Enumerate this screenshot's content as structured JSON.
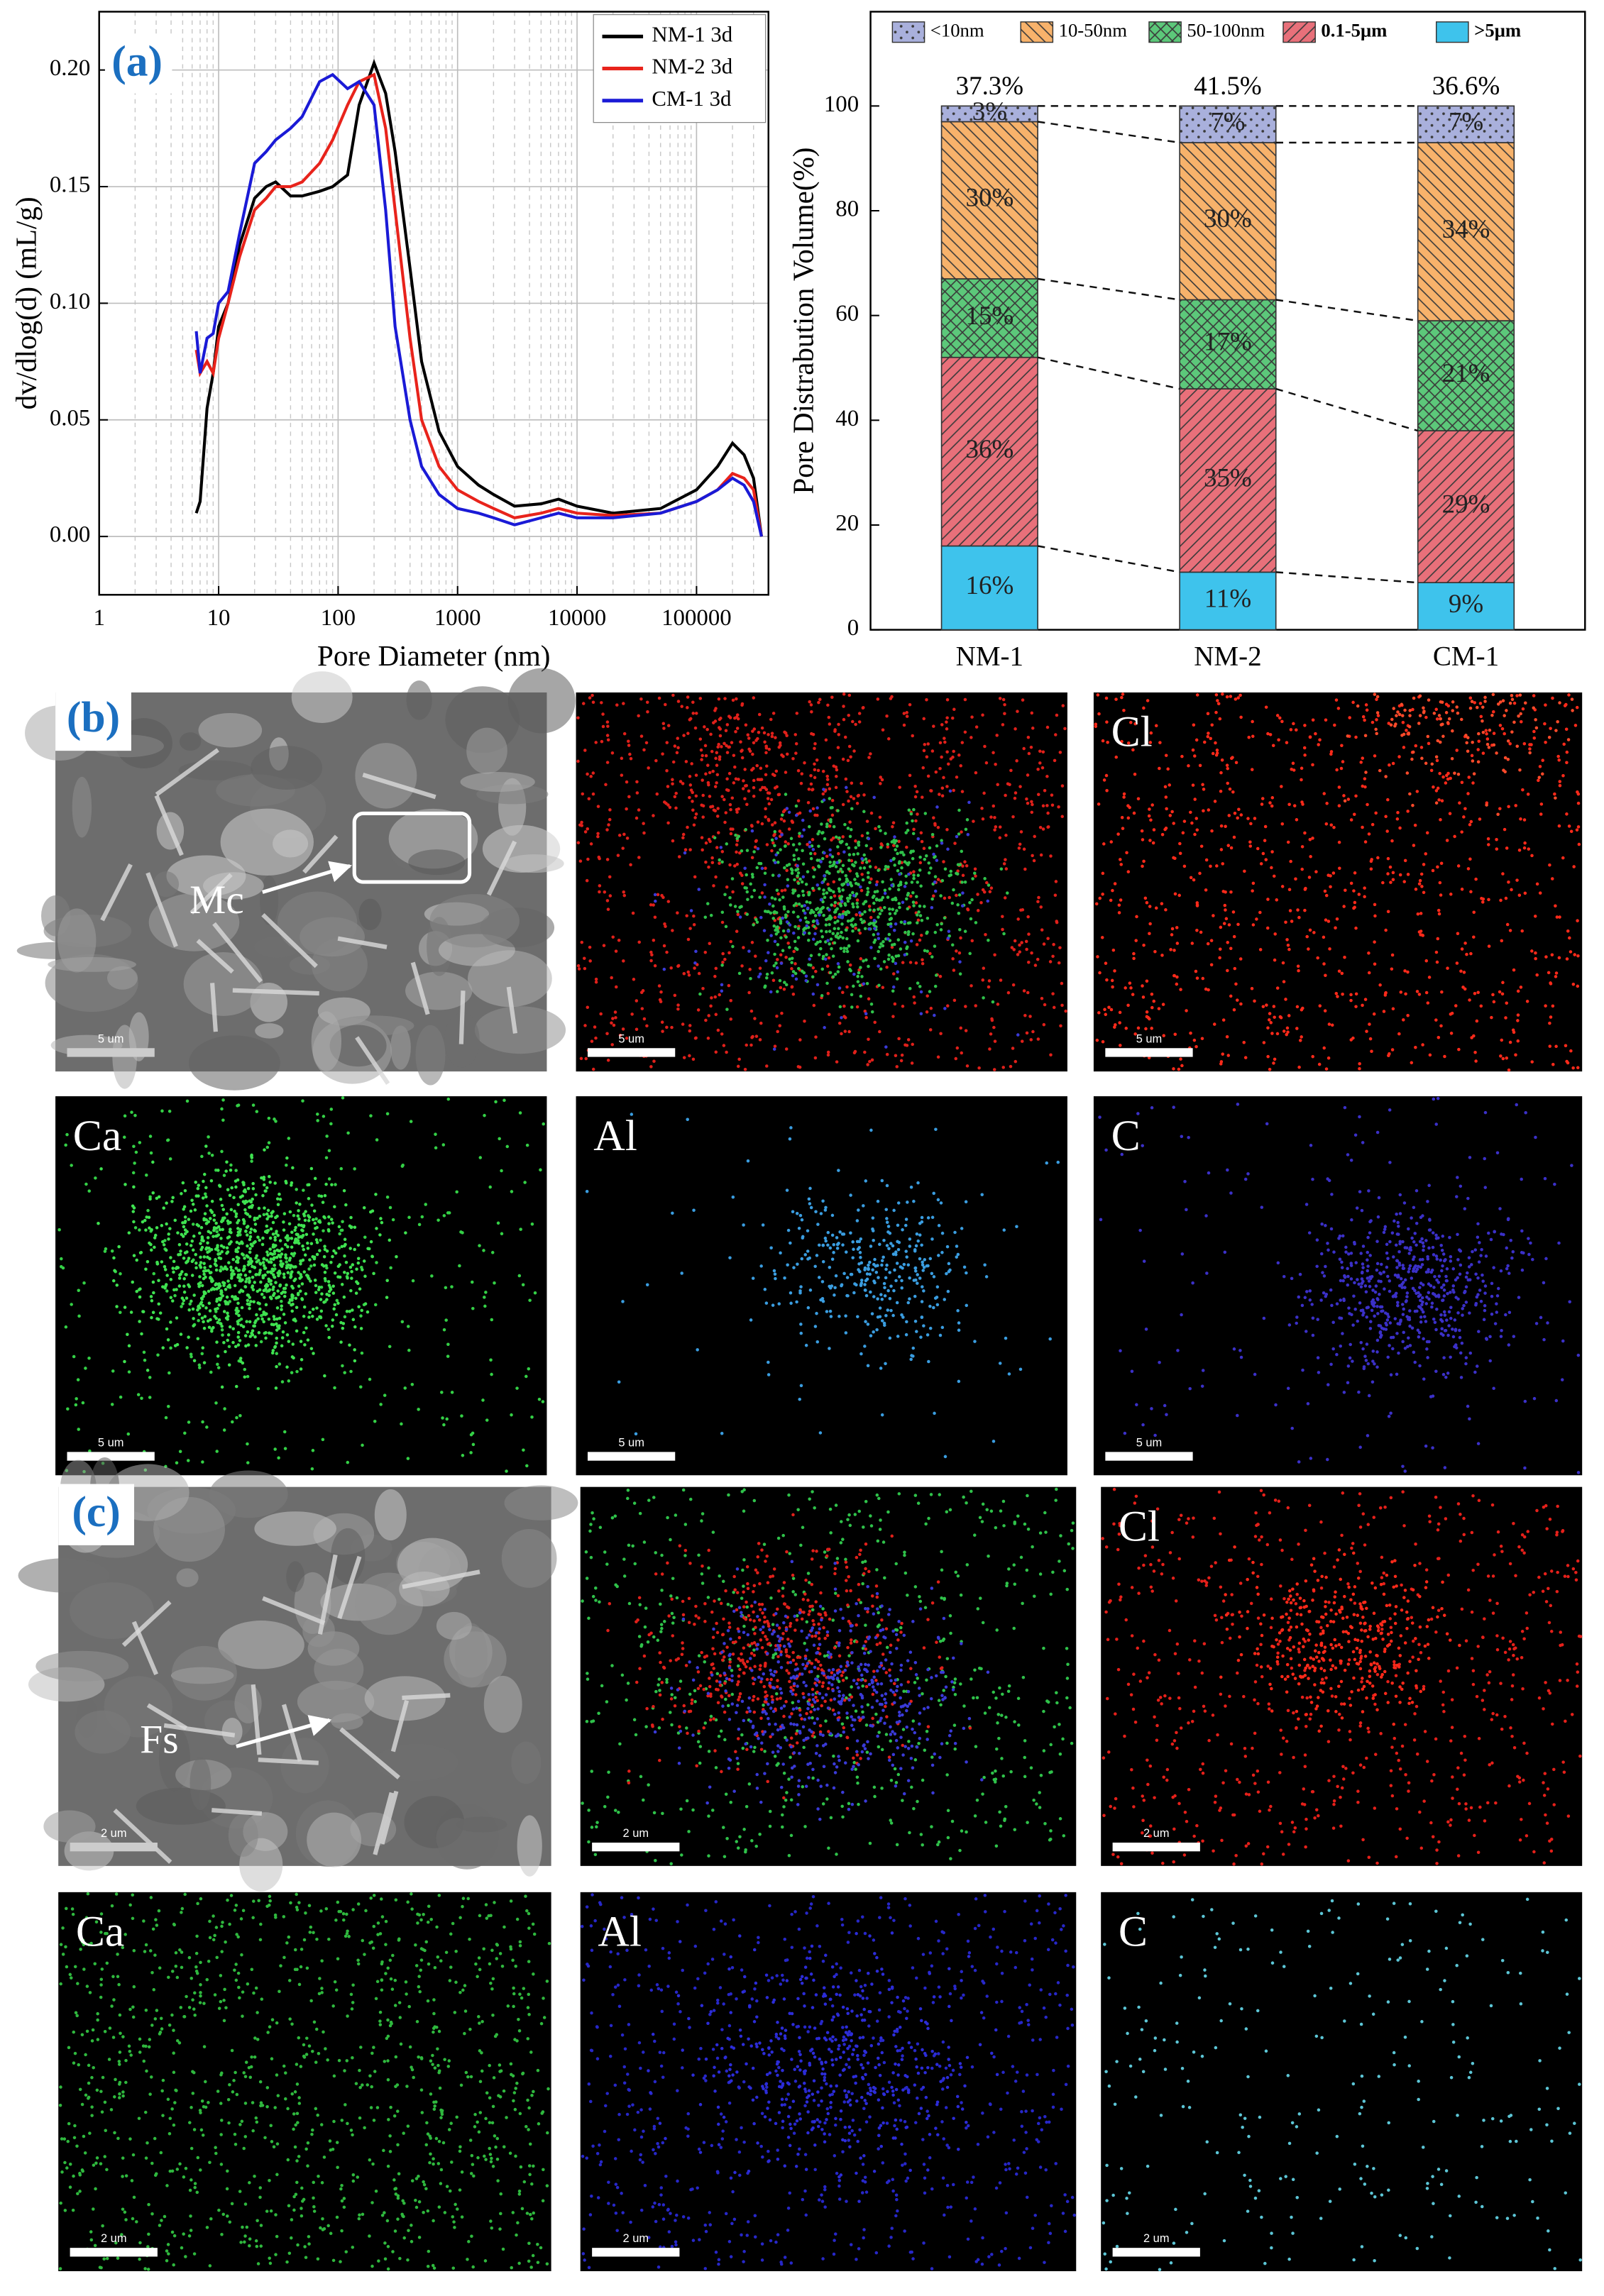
{
  "chart_data": [
    {
      "type": "line",
      "panel": "(a)",
      "xlabel": "Pore Diameter (nm)",
      "ylabel": "dv/dlog(d) (mL/g)",
      "xscale": "log",
      "grid": true,
      "legend": "upper right",
      "xlim": [
        1,
        400000
      ],
      "ylim": [
        -0.025,
        0.225
      ],
      "xticks": [
        1,
        10,
        100,
        1000,
        10000,
        100000
      ],
      "yticks": [
        {
          "value": 0,
          "label": "0.00"
        },
        {
          "value": 0.05,
          "label": "0.05"
        },
        {
          "value": 0.1,
          "label": "0.10"
        },
        {
          "value": 0.15,
          "label": "0.15"
        },
        {
          "value": 0.2,
          "label": "0.20"
        }
      ],
      "x": [
        6.5,
        7,
        8,
        9,
        10,
        12,
        15,
        20,
        25,
        30,
        40,
        50,
        70,
        90,
        120,
        150,
        200,
        250,
        300,
        400,
        500,
        700,
        1000,
        1500,
        2000,
        3000,
        5000,
        7000,
        10000,
        20000,
        50000,
        100000,
        150000,
        200000,
        250000,
        300000,
        350000
      ],
      "series": [
        {
          "name": "NM-1 3d",
          "color": "#000000",
          "values": [
            0.01,
            0.015,
            0.055,
            0.07,
            0.09,
            0.1,
            0.125,
            0.145,
            0.15,
            0.152,
            0.146,
            0.146,
            0.148,
            0.15,
            0.155,
            0.185,
            0.203,
            0.19,
            0.165,
            0.115,
            0.075,
            0.045,
            0.03,
            0.022,
            0.018,
            0.013,
            0.014,
            0.016,
            0.013,
            0.01,
            0.012,
            0.02,
            0.03,
            0.04,
            0.035,
            0.025,
            0
          ]
        },
        {
          "name": "NM-2 3d",
          "color": "#e8231b",
          "values": [
            0.08,
            0.07,
            0.075,
            0.07,
            0.085,
            0.1,
            0.12,
            0.14,
            0.145,
            0.15,
            0.15,
            0.152,
            0.16,
            0.17,
            0.185,
            0.195,
            0.198,
            0.175,
            0.14,
            0.085,
            0.05,
            0.03,
            0.02,
            0.015,
            0.012,
            0.008,
            0.01,
            0.012,
            0.01,
            0.009,
            0.01,
            0.015,
            0.02,
            0.027,
            0.025,
            0.02,
            0
          ]
        },
        {
          "name": "CM-1 3d",
          "color": "#1a1ad6",
          "values": [
            0.088,
            0.07,
            0.085,
            0.087,
            0.1,
            0.105,
            0.13,
            0.16,
            0.165,
            0.17,
            0.175,
            0.18,
            0.195,
            0.198,
            0.192,
            0.195,
            0.185,
            0.14,
            0.09,
            0.05,
            0.03,
            0.018,
            0.012,
            0.01,
            0.008,
            0.005,
            0.008,
            0.01,
            0.008,
            0.008,
            0.01,
            0.015,
            0.02,
            0.025,
            0.022,
            0.015,
            0
          ]
        }
      ]
    },
    {
      "type": "bar",
      "stacked": true,
      "legend": "top",
      "ylabel": "Pore Distrabution Volume(%)",
      "ylim": [
        0,
        118
      ],
      "yticks": [
        0,
        20,
        40,
        60,
        80,
        100
      ],
      "categories": [
        "NM-1",
        "NM-2",
        "CM-1"
      ],
      "top_labels": [
        "37.3%",
        "41.5%",
        "36.6%"
      ],
      "series": [
        {
          "name": ">5μm",
          "color": "#3ec3ec",
          "values": [
            16,
            11,
            9
          ],
          "value_labels": [
            "16%",
            "11%",
            "9%"
          ]
        },
        {
          "name": "0.1-5μm",
          "color": "#e8707a",
          "hatch": "/",
          "values": [
            36,
            35,
            29
          ],
          "value_labels": [
            "36%",
            "35%",
            "29%"
          ]
        },
        {
          "name": "50-100nm",
          "color": "#5cc87a",
          "hatch": "x",
          "values": [
            15,
            17,
            21
          ],
          "value_labels": [
            "15%",
            "17%",
            "21%"
          ]
        },
        {
          "name": "10-50nm",
          "color": "#f7b26b",
          "hatch": "\\",
          "values": [
            30,
            30,
            34
          ],
          "value_labels": [
            "30%",
            "30%",
            "34%"
          ]
        },
        {
          "name": "<10nm",
          "color": "#a9b0dc",
          "hatch": "dots",
          "values": [
            3,
            7,
            7
          ],
          "value_labels": [
            "3%",
            "7%",
            "7%"
          ]
        }
      ]
    }
  ],
  "micrographs": [
    {
      "panel": "(b)",
      "marker": "Mc",
      "scale": "5 um",
      "elements": [
        "Cl",
        "Ca",
        "Al",
        "C"
      ]
    },
    {
      "panel": "(c)",
      "marker": "Fs",
      "scale": "2 um",
      "elements": [
        "Cl",
        "Ca",
        "Al",
        "C"
      ]
    }
  ]
}
